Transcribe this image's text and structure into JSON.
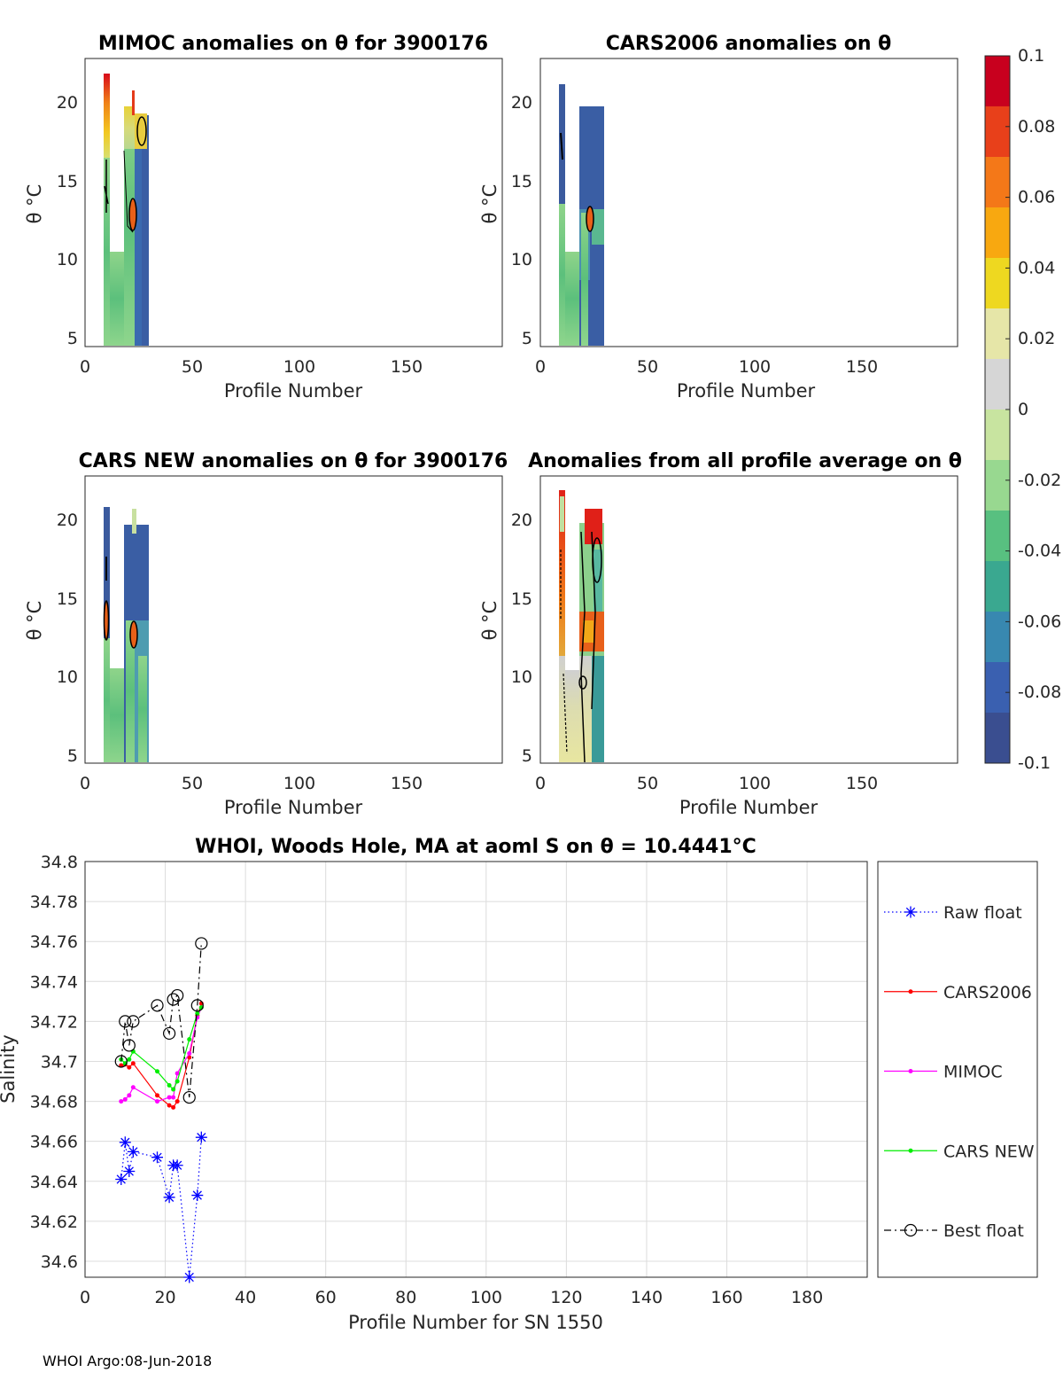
{
  "panels": [
    {
      "title": "MIMOC anomalies on θ  for 3900176",
      "xlabel": "Profile Number",
      "ylabel": "θ °C",
      "xticks": [
        "0",
        "50",
        "100",
        "150"
      ],
      "yticks": [
        "5",
        "10",
        "15",
        "20"
      ]
    },
    {
      "title": "CARS2006 anomalies on θ",
      "xlabel": "Profile Number",
      "ylabel": "θ °C",
      "xticks": [
        "0",
        "50",
        "100",
        "150"
      ],
      "yticks": [
        "5",
        "10",
        "15",
        "20"
      ]
    },
    {
      "title": "CARS NEW anomalies on θ for 3900176",
      "xlabel": "Profile Number",
      "ylabel": "θ °C",
      "xticks": [
        "0",
        "50",
        "100",
        "150"
      ],
      "yticks": [
        "5",
        "10",
        "15",
        "20"
      ]
    },
    {
      "title": "Anomalies from all profile average on θ",
      "xlabel": "Profile Number",
      "ylabel": "θ °C",
      "xticks": [
        "0",
        "50",
        "100",
        "150"
      ],
      "yticks": [
        "5",
        "10",
        "15",
        "20"
      ]
    }
  ],
  "colorbar": {
    "ticks": [
      "0.1",
      "0.08",
      "0.06",
      "0.04",
      "0.02",
      "0",
      "-0.02",
      "-0.04",
      "-0.06",
      "-0.08",
      "-0.1"
    ],
    "colors": [
      "#c8001e",
      "#e8401a",
      "#f47818",
      "#f8a810",
      "#eed820",
      "#e6e6a8",
      "#d6d6d6",
      "#c8e4a0",
      "#98d890",
      "#58c080",
      "#3aa890",
      "#3888b0",
      "#3a60b0",
      "#3a4e90"
    ]
  },
  "chart_data": {
    "type": "line",
    "title": "WHOI, Woods Hole, MA at aoml S on θ = 10.4441°C",
    "xlabel": "Profile Number for SN 1550",
    "ylabel": "Salinity",
    "xlim": [
      0,
      195
    ],
    "ylim": [
      34.592,
      34.8
    ],
    "xticks": [
      "0",
      "20",
      "40",
      "60",
      "80",
      "100",
      "120",
      "140",
      "160",
      "180"
    ],
    "yticks": [
      "34.8",
      "34.78",
      "34.76",
      "34.74",
      "34.72",
      "34.7",
      "34.68",
      "34.66",
      "34.64",
      "34.62",
      "34.6"
    ],
    "series": [
      {
        "name": "Raw float",
        "color": "#0000ff",
        "style": "dotted",
        "marker": "star",
        "x": [
          9,
          10,
          11,
          12,
          18,
          21,
          22,
          23,
          26,
          28,
          29
        ],
        "y": [
          34.641,
          34.6595,
          34.645,
          34.6548,
          34.652,
          34.632,
          34.648,
          34.648,
          34.592,
          34.633,
          34.662
        ]
      },
      {
        "name": "CARS2006",
        "color": "#ff0000",
        "style": "solid",
        "marker": "dot",
        "x": [
          9,
          10,
          11,
          12,
          18,
          21,
          22,
          23,
          26,
          28,
          29
        ],
        "y": [
          34.698,
          34.6985,
          34.697,
          34.699,
          34.683,
          34.678,
          34.677,
          34.68,
          34.702,
          34.723,
          34.729
        ]
      },
      {
        "name": "MIMOC",
        "color": "#ff00ff",
        "style": "solid",
        "marker": "dot",
        "x": [
          9,
          10,
          11,
          12,
          18,
          21,
          22,
          23,
          26,
          28,
          29
        ],
        "y": [
          34.68,
          34.681,
          34.683,
          34.687,
          34.68,
          34.682,
          34.682,
          34.694,
          34.704,
          34.722,
          34.727
        ]
      },
      {
        "name": "CARS NEW",
        "color": "#00ee00",
        "style": "solid",
        "marker": "dot",
        "x": [
          9,
          10,
          11,
          12,
          18,
          21,
          22,
          23,
          26,
          28,
          29
        ],
        "y": [
          34.701,
          34.699,
          34.701,
          34.705,
          34.695,
          34.688,
          34.686,
          34.69,
          34.711,
          34.724,
          34.727
        ]
      },
      {
        "name": "Best float",
        "color": "#000000",
        "style": "dashdot",
        "marker": "circle",
        "x": [
          9,
          10,
          11,
          12,
          18,
          21,
          22,
          23,
          26,
          28,
          29
        ],
        "y": [
          34.7,
          34.72,
          34.708,
          34.72,
          34.728,
          34.714,
          34.731,
          34.733,
          34.682,
          34.728,
          34.759
        ]
      }
    ]
  },
  "footer": "WHOI Argo:08-Jun-2018"
}
